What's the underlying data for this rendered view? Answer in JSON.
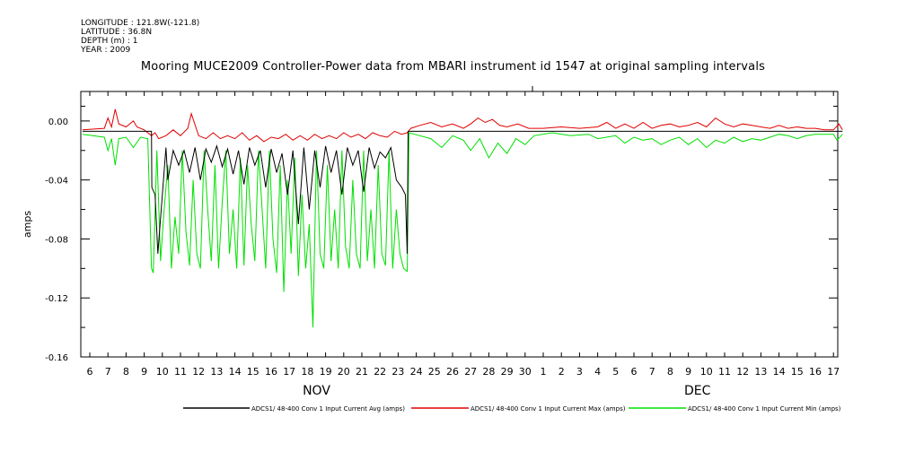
{
  "meta": {
    "longitude": "LONGITUDE : 121.8W(-121.8)",
    "latitude": "LATITUDE : 36.8N",
    "depth": "DEPTH (m) : 1",
    "year": "YEAR : 2009"
  },
  "colors": {
    "avg": "#000000",
    "max": "#e00000",
    "min": "#00e000"
  },
  "chart_data": {
    "type": "line",
    "title": "Mooring MUCE2009 Controller-Power data from MBARI instrument id 1547 at original sampling intervals",
    "xlabel": "",
    "ylabel": "amps",
    "x_ticks": [
      "6",
      "7",
      "8",
      "9",
      "10",
      "11",
      "12",
      "13",
      "14",
      "15",
      "16",
      "17",
      "18",
      "19",
      "20",
      "21",
      "22",
      "23",
      "24",
      "25",
      "26",
      "27",
      "28",
      "29",
      "30",
      "1",
      "2",
      "3",
      "4",
      "5",
      "6",
      "7",
      "8",
      "9",
      "10",
      "11",
      "12",
      "13",
      "14",
      "15",
      "16",
      "17"
    ],
    "month_labels": [
      {
        "label": "NOV",
        "day_index": 12.5
      },
      {
        "label": "DEC",
        "day_index": 33.5
      }
    ],
    "xlim": [
      5.5,
      47.5
    ],
    "ylim": [
      -0.16,
      0.02
    ],
    "y_ticks": [
      "0.00",
      "-0.04",
      "-0.08",
      "-0.12",
      "-0.16"
    ],
    "y_tick_values": [
      0.0,
      -0.04,
      -0.08,
      -0.12,
      -0.16
    ],
    "series": [
      {
        "name": "ADCS1/ 48-400 Conv 1 Input Current  Avg (amps)",
        "key": "avg",
        "x": [
          5.6,
          9.4,
          9.42,
          9.6,
          9.75,
          10.2,
          10.3,
          10.6,
          10.9,
          11.2,
          11.5,
          11.8,
          12.1,
          12.4,
          12.7,
          13.0,
          13.3,
          13.6,
          13.9,
          14.2,
          14.5,
          14.8,
          15.1,
          15.4,
          15.7,
          16.0,
          16.3,
          16.6,
          16.9,
          17.2,
          17.5,
          17.8,
          18.1,
          18.4,
          18.7,
          19.0,
          19.3,
          19.6,
          19.9,
          20.2,
          20.5,
          20.8,
          21.1,
          21.4,
          21.7,
          22.0,
          22.3,
          22.6,
          22.9,
          23.2,
          23.4,
          23.5,
          23.55,
          47.5
        ],
        "y": [
          -0.007,
          -0.007,
          -0.045,
          -0.05,
          -0.09,
          -0.018,
          -0.04,
          -0.02,
          -0.03,
          -0.02,
          -0.035,
          -0.018,
          -0.04,
          -0.019,
          -0.028,
          -0.017,
          -0.031,
          -0.019,
          -0.036,
          -0.02,
          -0.043,
          -0.018,
          -0.03,
          -0.02,
          -0.045,
          -0.019,
          -0.035,
          -0.022,
          -0.05,
          -0.02,
          -0.07,
          -0.018,
          -0.06,
          -0.02,
          -0.045,
          -0.017,
          -0.035,
          -0.02,
          -0.05,
          -0.018,
          -0.03,
          -0.02,
          -0.048,
          -0.018,
          -0.032,
          -0.021,
          -0.025,
          -0.018,
          -0.04,
          -0.045,
          -0.05,
          -0.09,
          -0.007,
          -0.007
        ]
      },
      {
        "name": "ADCS1/ 48-400 Conv 1 Input Current  Max (amps)",
        "key": "max",
        "x": [
          5.6,
          6.8,
          7.0,
          7.2,
          7.4,
          7.6,
          8.0,
          8.4,
          8.6,
          9.0,
          9.4,
          9.6,
          9.8,
          10.2,
          10.6,
          11.0,
          11.4,
          11.6,
          12.0,
          12.4,
          12.8,
          13.2,
          13.6,
          14.0,
          14.4,
          14.8,
          15.2,
          15.6,
          16.0,
          16.4,
          16.8,
          17.2,
          17.6,
          18.0,
          18.4,
          18.8,
          19.2,
          19.6,
          20.0,
          20.4,
          20.8,
          21.2,
          21.6,
          22.0,
          22.4,
          22.8,
          23.2,
          23.5,
          23.7,
          24.2,
          24.8,
          25.4,
          26.0,
          26.6,
          27.0,
          27.4,
          27.8,
          28.2,
          28.6,
          29.0,
          29.6,
          30.2,
          31.0,
          32.0,
          33.0,
          34.0,
          34.5,
          35.0,
          35.5,
          36.0,
          36.5,
          37.0,
          37.5,
          38.0,
          38.5,
          39.0,
          39.5,
          40.0,
          40.5,
          41.0,
          41.5,
          42.0,
          42.5,
          43.0,
          43.5,
          44.0,
          44.5,
          45.0,
          45.5,
          46.0,
          46.5,
          47.0,
          47.3,
          47.5
        ],
        "y": [
          -0.006,
          -0.005,
          0.002,
          -0.004,
          0.008,
          -0.002,
          -0.004,
          0.0,
          -0.004,
          -0.006,
          -0.01,
          -0.008,
          -0.012,
          -0.01,
          -0.006,
          -0.01,
          -0.005,
          0.005,
          -0.01,
          -0.012,
          -0.008,
          -0.012,
          -0.01,
          -0.012,
          -0.008,
          -0.013,
          -0.01,
          -0.014,
          -0.011,
          -0.012,
          -0.009,
          -0.013,
          -0.01,
          -0.013,
          -0.009,
          -0.012,
          -0.01,
          -0.012,
          -0.008,
          -0.011,
          -0.009,
          -0.012,
          -0.008,
          -0.01,
          -0.011,
          -0.007,
          -0.009,
          -0.008,
          -0.005,
          -0.003,
          -0.001,
          -0.004,
          -0.002,
          -0.005,
          -0.002,
          0.002,
          -0.001,
          0.001,
          -0.003,
          -0.004,
          -0.002,
          -0.005,
          -0.005,
          -0.004,
          -0.005,
          -0.004,
          -0.001,
          -0.005,
          -0.002,
          -0.005,
          -0.001,
          -0.005,
          -0.003,
          -0.002,
          -0.004,
          -0.003,
          -0.001,
          -0.004,
          0.002,
          -0.002,
          -0.004,
          -0.002,
          -0.003,
          -0.004,
          -0.005,
          -0.003,
          -0.005,
          -0.004,
          -0.005,
          -0.005,
          -0.006,
          -0.006,
          -0.002,
          -0.006
        ]
      },
      {
        "name": "ADCS1/ 48-400 Conv 1 Input Current  Min (amps)",
        "key": "min",
        "x": [
          5.6,
          6.8,
          7.0,
          7.2,
          7.4,
          7.6,
          8.0,
          8.4,
          8.8,
          9.2,
          9.4,
          9.5,
          9.7,
          9.9,
          10.1,
          10.3,
          10.5,
          10.7,
          10.9,
          11.1,
          11.3,
          11.5,
          11.7,
          11.9,
          12.1,
          12.3,
          12.5,
          12.7,
          12.9,
          13.1,
          13.3,
          13.5,
          13.7,
          13.9,
          14.1,
          14.3,
          14.5,
          14.7,
          14.9,
          15.1,
          15.3,
          15.5,
          15.7,
          15.9,
          16.1,
          16.3,
          16.5,
          16.7,
          16.9,
          17.1,
          17.3,
          17.5,
          17.7,
          17.9,
          18.1,
          18.3,
          18.5,
          18.7,
          18.9,
          19.1,
          19.3,
          19.5,
          19.7,
          19.9,
          20.1,
          20.3,
          20.5,
          20.7,
          20.9,
          21.1,
          21.3,
          21.5,
          21.7,
          21.9,
          22.1,
          22.3,
          22.5,
          22.7,
          22.9,
          23.1,
          23.3,
          23.5,
          23.6,
          24.2,
          24.8,
          25.4,
          26.0,
          26.6,
          27.0,
          27.5,
          28.0,
          28.5,
          29.0,
          29.5,
          30.0,
          30.5,
          31.5,
          32.5,
          33.5,
          34.0,
          35.0,
          35.5,
          36.0,
          36.5,
          37.0,
          37.5,
          38.0,
          38.5,
          39.0,
          39.5,
          40.0,
          40.5,
          41.0,
          41.5,
          42.0,
          42.5,
          43.0,
          43.5,
          44.0,
          44.5,
          45.0,
          45.5,
          46.0,
          46.5,
          47.0,
          47.2,
          47.5
        ],
        "y": [
          -0.009,
          -0.011,
          -0.02,
          -0.012,
          -0.03,
          -0.012,
          -0.011,
          -0.018,
          -0.011,
          -0.012,
          -0.1,
          -0.103,
          -0.02,
          -0.095,
          -0.06,
          -0.03,
          -0.1,
          -0.065,
          -0.09,
          -0.02,
          -0.075,
          -0.098,
          -0.04,
          -0.09,
          -0.1,
          -0.02,
          -0.06,
          -0.095,
          -0.03,
          -0.1,
          -0.055,
          -0.02,
          -0.09,
          -0.06,
          -0.1,
          -0.025,
          -0.098,
          -0.03,
          -0.07,
          -0.095,
          -0.02,
          -0.06,
          -0.1,
          -0.02,
          -0.08,
          -0.103,
          -0.03,
          -0.116,
          -0.04,
          -0.09,
          -0.025,
          -0.105,
          -0.05,
          -0.1,
          -0.07,
          -0.14,
          -0.02,
          -0.09,
          -0.1,
          -0.03,
          -0.095,
          -0.06,
          -0.1,
          -0.02,
          -0.085,
          -0.1,
          -0.04,
          -0.09,
          -0.1,
          -0.02,
          -0.095,
          -0.06,
          -0.1,
          -0.03,
          -0.09,
          -0.098,
          -0.02,
          -0.1,
          -0.06,
          -0.09,
          -0.1,
          -0.102,
          -0.008,
          -0.01,
          -0.012,
          -0.018,
          -0.01,
          -0.013,
          -0.02,
          -0.012,
          -0.025,
          -0.015,
          -0.022,
          -0.012,
          -0.016,
          -0.01,
          -0.008,
          -0.01,
          -0.009,
          -0.012,
          -0.01,
          -0.015,
          -0.011,
          -0.013,
          -0.012,
          -0.016,
          -0.013,
          -0.011,
          -0.016,
          -0.012,
          -0.018,
          -0.013,
          -0.015,
          -0.011,
          -0.014,
          -0.012,
          -0.013,
          -0.011,
          -0.009,
          -0.01,
          -0.012,
          -0.01,
          -0.009,
          -0.009,
          -0.009,
          -0.013,
          -0.009
        ]
      }
    ]
  }
}
